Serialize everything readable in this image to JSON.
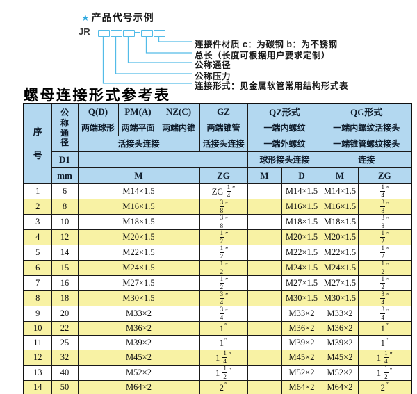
{
  "diagram": {
    "star": "★",
    "title": "产品代号示例",
    "prefix": "JR",
    "labels": [
      "连接件材质  c：为碳钢  b：为不锈钢",
      "总长（长度可根据用户要求定制）",
      "公称通径",
      "公称压力",
      "连接形式：见金属软管常用结构形式表"
    ]
  },
  "table_title": "螺母连接形式参考表",
  "table": {
    "header": {
      "seq": "序号",
      "dn": "公称通径",
      "d1": "D1",
      "mm": "mm",
      "q": "Q(D)",
      "pm": "PM(A)",
      "nz": "NZ(C)",
      "gz": "GZ",
      "qz": "QZ形式",
      "qg": "QG形式",
      "q_desc": "两端球形",
      "pm_desc": "两端平面",
      "nz_desc": "两端内锥",
      "gz_desc": "两端锥管",
      "qz_desc1": "一端内螺纹",
      "qg_desc1": "一端内螺纹活接头",
      "union_conn": "活接头连接",
      "gz_conn": "活接头连接",
      "qz_desc2": "一端外螺纹",
      "qg_desc2": "一端锥管螺纹接头",
      "qz_conn": "球形接头连接",
      "qg_conn": "连接",
      "m1": "M",
      "zg1": "ZG",
      "qz_m": "M",
      "qz_d": "D",
      "qg_m": "M",
      "qg_zg": "ZG"
    },
    "row_colspans": [
      1,
      1,
      3,
      1,
      1,
      1,
      1,
      1
    ],
    "rows": [
      [
        "1",
        "6",
        "M14×1.5",
        "ZG 1/4″",
        "",
        "M14×1.5",
        "M14×1.5",
        "1/4″"
      ],
      [
        "2",
        "8",
        "M16×1.5",
        "3/8″",
        "",
        "M16×1.5",
        "M16×1.5",
        "3/8″"
      ],
      [
        "3",
        "10",
        "M18×1.5",
        "3/8″",
        "",
        "M18×1.5",
        "M18×1.5",
        "3/8″"
      ],
      [
        "4",
        "12",
        "M20×1.5",
        "1/2″",
        "",
        "M20×1.5",
        "M20×1.5",
        "1/2″"
      ],
      [
        "5",
        "14",
        "M22×1.5",
        "1/2″",
        "",
        "M22×1.5",
        "M22×1.5",
        "1/2″"
      ],
      [
        "6",
        "15",
        "M24×1.5",
        "1/2″",
        "",
        "M24×1.5",
        "M24×1.5",
        "1/2″"
      ],
      [
        "7",
        "16",
        "M27×1.5",
        "1/2″",
        "",
        "M27×1.5",
        "M27×1.5",
        "1/2″"
      ],
      [
        "8",
        "18",
        "M30×1.5",
        "3/4″",
        "",
        "M30×1.5",
        "M30×1.5",
        "3/4″"
      ],
      [
        "9",
        "20",
        "M33×2",
        "3/4″",
        "",
        "M33×2",
        "M33×2",
        "3/4″"
      ],
      [
        "10",
        "22",
        "M36×2",
        "1″",
        "",
        "M36×2",
        "M36×2",
        "1″"
      ],
      [
        "11",
        "25",
        "M39×2",
        "1″",
        "",
        "M39×2",
        "M39×2",
        "1″"
      ],
      [
        "12",
        "32",
        "M45×2",
        "1 1/4″",
        "",
        "M45×2",
        "M45×2",
        "1 1/4″"
      ],
      [
        "13",
        "40",
        "M52×2",
        "1 1/2″",
        "",
        "M52×2",
        "M52×2",
        "1 1/2″"
      ],
      [
        "14",
        "50",
        "M64×2",
        "2″",
        "",
        "M64×2",
        "M64×2",
        "2″"
      ]
    ]
  },
  "colors": {
    "accent_cyan": "#53bce8",
    "header_blue": "#b3d8f0",
    "row_yellow": "#f8f2a4",
    "border_dark": "#101010"
  }
}
